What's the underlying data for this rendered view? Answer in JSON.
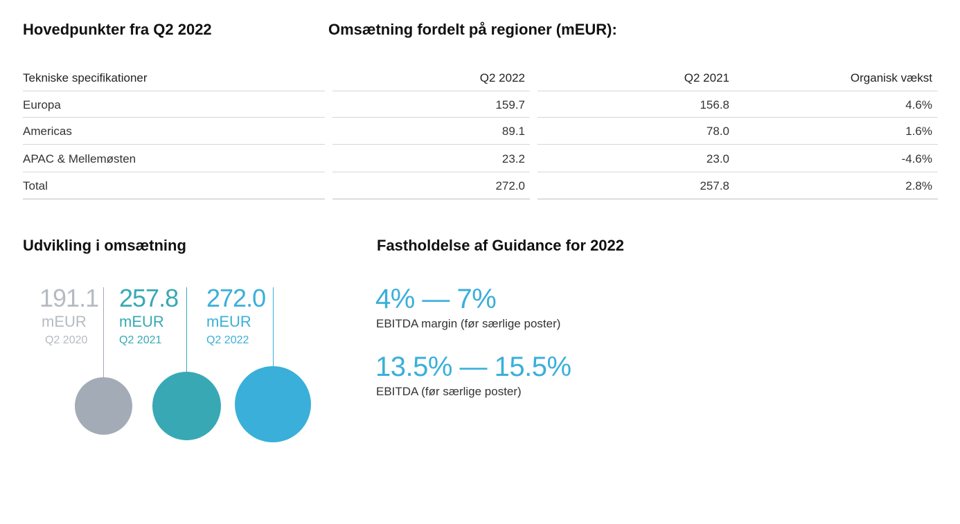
{
  "highlights": {
    "title": "Hovedpunkter fra Q2 2022"
  },
  "revenue_table": {
    "title": "Omsætning fordelt på regioner (mEUR):",
    "headers": [
      "Tekniske specifikationer",
      "Q2 2022",
      "Q2 2021",
      "Organisk vækst"
    ],
    "rows": [
      [
        "Europa",
        "159.7",
        "156.8",
        "4.6%"
      ],
      [
        "Americas",
        "89.1",
        "78.0",
        "1.6%"
      ],
      [
        "APAC & Mellemøsten",
        "23.2",
        "23.0",
        "-4.6%"
      ],
      [
        "Total",
        "272.0",
        "257.8",
        "2.8%"
      ]
    ]
  },
  "development": {
    "title": "Udvikling i omsætning",
    "items": [
      {
        "value": "191.1",
        "unit": "mEUR",
        "period": "Q2 2020",
        "color": "#a3abb6",
        "text_color": "#b5bac2"
      },
      {
        "value": "257.8",
        "unit": "mEUR",
        "period": "Q2 2021",
        "color": "#38a9b4",
        "text_color": "#38a9b4"
      },
      {
        "value": "272.0",
        "unit": "mEUR",
        "period": "Q2 2022",
        "color": "#3aafda",
        "text_color": "#3aafda"
      }
    ]
  },
  "guidance": {
    "title": "Fastholdelse af Guidance for 2022",
    "items": [
      {
        "range": "4% — 7%",
        "label": "EBITDA margin (før særlige poster)"
      },
      {
        "range": "13.5% — 15.5%",
        "label": "EBITDA (før særlige poster)"
      }
    ],
    "accent": "#3aafda"
  }
}
